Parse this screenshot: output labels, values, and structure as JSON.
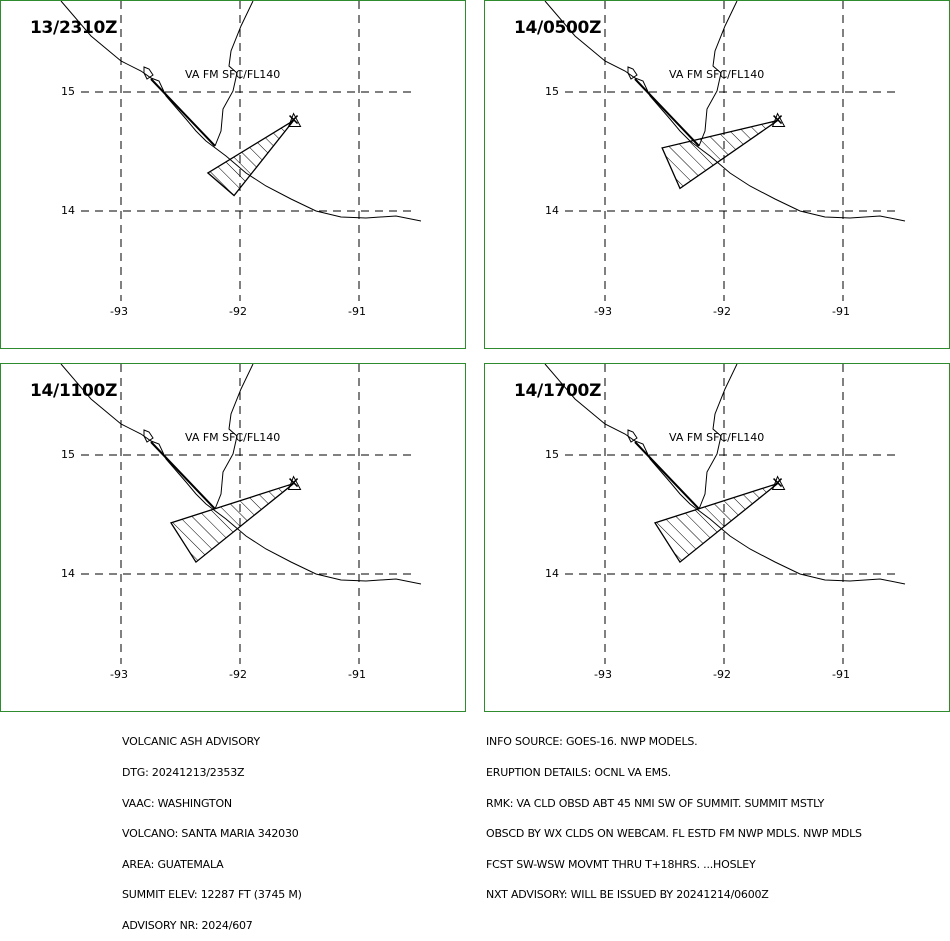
{
  "panels": [
    {
      "time": "13/2310Z",
      "label": "VA FM SFC/FL140",
      "lat_labels": [
        "15",
        "14"
      ],
      "lon_labels": [
        "-93",
        "-92",
        "-91"
      ],
      "polygon_lonlat": [
        [
          -91.55,
          14.76
        ],
        [
          -92.05,
          14.13
        ],
        [
          -92.27,
          14.32
        ]
      ]
    },
    {
      "time": "14/0500Z",
      "label": "VA FM SFC/FL140",
      "lat_labels": [
        "15",
        "14"
      ],
      "lon_labels": [
        "-93",
        "-92",
        "-91"
      ],
      "polygon_lonlat": [
        [
          -91.55,
          14.76
        ],
        [
          -92.37,
          14.19
        ],
        [
          -92.52,
          14.53
        ]
      ]
    },
    {
      "time": "14/1100Z",
      "label": "VA FM SFC/FL140",
      "lat_labels": [
        "15",
        "14"
      ],
      "lon_labels": [
        "-93",
        "-92",
        "-91"
      ],
      "polygon_lonlat": [
        [
          -91.55,
          14.76
        ],
        [
          -92.37,
          14.1
        ],
        [
          -92.58,
          14.43
        ]
      ]
    },
    {
      "time": "14/1700Z",
      "label": "VA FM SFC/FL140",
      "lat_labels": [
        "15",
        "14"
      ],
      "lon_labels": [
        "-93",
        "-92",
        "-91"
      ],
      "polygon_lonlat": [
        [
          -91.55,
          14.76
        ],
        [
          -92.37,
          14.1
        ],
        [
          -92.58,
          14.43
        ]
      ]
    }
  ],
  "summit_lonlat": [
    -91.55,
    14.76
  ],
  "colors": {
    "panel_border": "#2e8b2e",
    "lines": "#000000"
  },
  "advisory_left": [
    "VOLCANIC ASH ADVISORY",
    "DTG: 20241213/2353Z",
    "VAAC: WASHINGTON",
    "VOLCANO: SANTA MARIA 342030",
    "AREA: GUATEMALA",
    "SUMMIT ELEV: 12287 FT (3745 M)",
    "ADVISORY NR: 2024/607"
  ],
  "advisory_right": [
    "INFO SOURCE: GOES-16. NWP MODELS.",
    "ERUPTION DETAILS: OCNL VA EMS.",
    "RMK: VA CLD OBSD ABT 45 NMI SW OF SUMMIT. SUMMIT MSTLY",
    "OBSCD BY WX CLDS ON WEBCAM. FL ESTD FM NWP MDLS. NWP MDLS",
    "FCST SW-WSW MOVMT THRU T+18HRS. ...HOSLEY",
    "NXT ADVISORY: WILL BE ISSUED BY 20241214/0600Z"
  ]
}
